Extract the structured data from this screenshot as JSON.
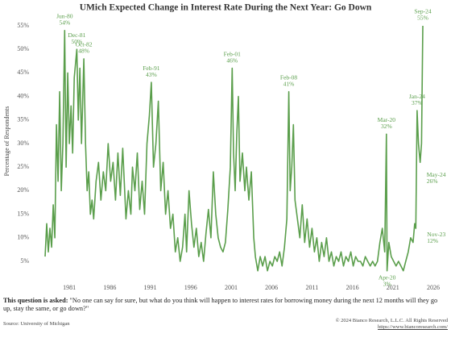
{
  "chart_data": {
    "type": "line",
    "title": "UMich Expected Change in Interest Rate During the Next Year: Go Down",
    "y_label": "Percentage of Respondents",
    "color": "#5a9e4b",
    "grid": false,
    "xlim": [
      1977.5,
      2026.5
    ],
    "ylim": [
      2,
      57
    ],
    "xticks": [
      1981,
      1986,
      1991,
      1996,
      2001,
      2006,
      2011,
      2016,
      2021,
      2026
    ],
    "yticks": [
      {
        "value": 5,
        "label": "5%"
      },
      {
        "value": 10,
        "label": "10%"
      },
      {
        "value": 15,
        "label": "15%"
      },
      {
        "value": 20,
        "label": "20%"
      },
      {
        "value": 25,
        "label": "25%"
      },
      {
        "value": 30,
        "label": "30%"
      },
      {
        "value": 35,
        "label": "35%"
      },
      {
        "value": 40,
        "label": "40%"
      },
      {
        "value": 45,
        "label": "45%"
      },
      {
        "value": 50,
        "label": "50%"
      },
      {
        "value": 55,
        "label": "55%"
      }
    ],
    "x": [
      1978.0,
      1978.2,
      1978.4,
      1978.6,
      1978.8,
      1979.0,
      1979.2,
      1979.4,
      1979.6,
      1979.8,
      1980.0,
      1980.2,
      1980.42,
      1980.6,
      1980.8,
      1981.0,
      1981.2,
      1981.4,
      1981.6,
      1981.92,
      1982.1,
      1982.3,
      1982.5,
      1982.79,
      1983.0,
      1983.2,
      1983.4,
      1983.6,
      1983.8,
      1984.0,
      1984.3,
      1984.6,
      1984.9,
      1985.2,
      1985.5,
      1985.8,
      1986.1,
      1986.4,
      1986.7,
      1987.0,
      1987.3,
      1987.6,
      1988.0,
      1988.3,
      1988.6,
      1988.8,
      1989.1,
      1989.4,
      1989.7,
      1990.0,
      1990.3,
      1990.6,
      1990.9,
      1991.13,
      1991.4,
      1991.7,
      1992.0,
      1992.3,
      1992.6,
      1992.9,
      1993.2,
      1993.5,
      1993.8,
      1994.1,
      1994.4,
      1994.7,
      1995.0,
      1995.3,
      1995.5,
      1995.8,
      1996.1,
      1996.4,
      1996.7,
      1997.0,
      1997.3,
      1997.6,
      1997.9,
      1998.2,
      1998.5,
      1998.8,
      1999.1,
      1999.4,
      1999.7,
      2000.0,
      2000.3,
      2000.6,
      2000.9,
      2001.13,
      2001.3,
      2001.5,
      2001.7,
      2001.9,
      2002.1,
      2002.4,
      2002.7,
      2002.9,
      2003.2,
      2003.5,
      2003.8,
      2004.0,
      2004.3,
      2004.6,
      2004.9,
      2005.2,
      2005.5,
      2005.8,
      2006.1,
      2006.4,
      2006.7,
      2007.0,
      2007.3,
      2007.6,
      2007.9,
      2008.13,
      2008.3,
      2008.5,
      2008.7,
      2008.9,
      2009.2,
      2009.5,
      2009.8,
      2010.1,
      2010.4,
      2010.7,
      2011.0,
      2011.3,
      2011.6,
      2011.9,
      2012.2,
      2012.5,
      2012.8,
      2013.1,
      2013.4,
      2013.7,
      2014.0,
      2014.3,
      2014.6,
      2014.9,
      2015.2,
      2015.5,
      2015.8,
      2016.1,
      2016.4,
      2016.7,
      2017.0,
      2017.3,
      2017.6,
      2017.9,
      2018.2,
      2018.5,
      2018.8,
      2019.1,
      2019.4,
      2019.7,
      2020.0,
      2020.21,
      2020.29,
      2020.5,
      2020.8,
      2021.1,
      2021.4,
      2021.7,
      2022.0,
      2022.3,
      2022.6,
      2022.9,
      2023.2,
      2023.5,
      2023.7,
      2023.84,
      2024.0,
      2024.17,
      2024.38,
      2024.55,
      2024.71
    ],
    "values": [
      6,
      13,
      7,
      12,
      8,
      17,
      10,
      34,
      22,
      41,
      20,
      30,
      54,
      25,
      45,
      30,
      38,
      28,
      44,
      50,
      35,
      46,
      30,
      48,
      30,
      20,
      24,
      15,
      18,
      14,
      22,
      26,
      18,
      24,
      20,
      30,
      22,
      26,
      18,
      28,
      19,
      29,
      14,
      20,
      15,
      25,
      20,
      28,
      16,
      22,
      15,
      30,
      36,
      43,
      25,
      30,
      39,
      20,
      26,
      15,
      20,
      12,
      15,
      7,
      10,
      5,
      8,
      15,
      7,
      20,
      13,
      8,
      12,
      6,
      9,
      5,
      11,
      16,
      10,
      24,
      15,
      10,
      8,
      7,
      9,
      16,
      25,
      46,
      28,
      20,
      32,
      40,
      22,
      28,
      20,
      25,
      18,
      24,
      10,
      6,
      3,
      6,
      4,
      6,
      3,
      5,
      4,
      6,
      5,
      7,
      4,
      8,
      14,
      41,
      20,
      25,
      34,
      18,
      14,
      10,
      17,
      9,
      14,
      8,
      12,
      7,
      10,
      5,
      9,
      6,
      10,
      5,
      7,
      4,
      6,
      5,
      7,
      4,
      6,
      5,
      7,
      4,
      6,
      5,
      5,
      4,
      6,
      5,
      4,
      5,
      4,
      5,
      9,
      12,
      7,
      32,
      3,
      9,
      6,
      5,
      4,
      5,
      4,
      3,
      5,
      7,
      10,
      9,
      13,
      12,
      37,
      30,
      26,
      30,
      55
    ],
    "annotations": [
      {
        "label": "Jun-80",
        "value_label": "54%",
        "x": 1980.42,
        "y": 54
      },
      {
        "label": "Dec-81",
        "value_label": "50%",
        "x": 1981.92,
        "y": 50
      },
      {
        "label": "Oct-82",
        "value_label": "48%",
        "x": 1982.79,
        "y": 48
      },
      {
        "label": "Feb-91",
        "value_label": "43%",
        "x": 1991.13,
        "y": 43
      },
      {
        "label": "Feb-01",
        "value_label": "46%",
        "x": 2001.13,
        "y": 46
      },
      {
        "label": "Feb-08",
        "value_label": "41%",
        "x": 2008.13,
        "y": 41
      },
      {
        "label": "Mar-20",
        "value_label": "32%",
        "x": 2020.21,
        "y": 32
      },
      {
        "label": "Apr-20",
        "value_label": "3%",
        "x": 2020.29,
        "y": 3
      },
      {
        "label": "Nov-23",
        "value_label": "12%",
        "x": 2023.84,
        "y": 12
      },
      {
        "label": "Jan-24",
        "value_label": "37%",
        "x": 2024.0,
        "y": 37
      },
      {
        "label": "May-24",
        "value_label": "26%",
        "x": 2024.38,
        "y": 26
      },
      {
        "label": "Sep-24",
        "value_label": "55%",
        "x": 2024.71,
        "y": 55
      }
    ]
  },
  "footer": {
    "question_lead": "This question is asked:",
    "question": "\"No one can say for sure, but what do you think will happen to interest rates for borrowing money during the next 12 months will they go up, stay the same, or go down?\"",
    "source": "Source: University of Michigan",
    "copyright": "© 2024 Bianco Research, L.L.C. All Rights Reserved",
    "url": "https://www.biancoresearch.com/"
  }
}
